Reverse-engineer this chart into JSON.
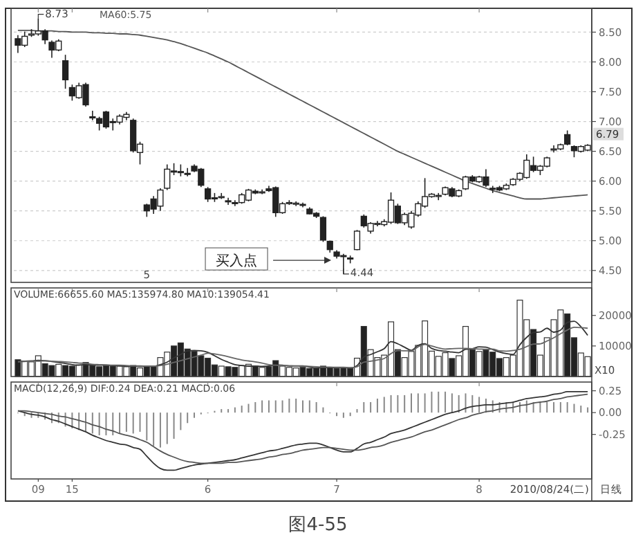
{
  "chart_data": [
    {
      "type": "candlestick",
      "color": "#222222",
      "grid": "y",
      "legend": "top left",
      "tick_labels": "y",
      "categories": [
        null,
        null,
        null,
        "09",
        null,
        null,
        null,
        null,
        "15",
        null,
        null,
        null,
        null,
        null,
        null,
        null,
        null,
        null,
        null,
        null,
        null,
        null,
        null,
        null,
        null,
        null,
        null,
        null,
        "6",
        null,
        null,
        null,
        null,
        null,
        null,
        null,
        null,
        null,
        null,
        null,
        null,
        null,
        null,
        null,
        null,
        null,
        null,
        "7",
        null,
        null,
        null,
        null,
        null,
        null,
        null,
        null,
        null,
        null,
        null,
        null,
        null,
        null,
        null,
        null,
        null,
        null,
        null,
        null,
        "8",
        null,
        null,
        null,
        null,
        null,
        null,
        null,
        null,
        null,
        null,
        null,
        null,
        null,
        null,
        null,
        null
      ],
      "ohlc": [
        [
          8.39,
          8.45,
          8.15,
          8.28
        ],
        [
          8.28,
          8.51,
          8.25,
          8.43
        ],
        [
          8.45,
          8.55,
          8.42,
          8.47
        ],
        [
          8.47,
          8.73,
          8.44,
          8.52
        ],
        [
          8.52,
          8.55,
          8.3,
          8.37
        ],
        [
          8.33,
          8.36,
          8.07,
          8.2
        ],
        [
          8.2,
          8.38,
          8.18,
          8.35
        ],
        [
          8.02,
          8.12,
          7.55,
          7.7
        ],
        [
          7.57,
          7.62,
          7.35,
          7.43
        ],
        [
          7.4,
          7.65,
          7.38,
          7.6
        ],
        [
          7.62,
          7.65,
          7.25,
          7.28
        ],
        [
          7.08,
          7.18,
          7.02,
          7.06
        ],
        [
          7.05,
          7.08,
          6.85,
          6.97
        ],
        [
          7.16,
          7.18,
          6.88,
          6.91
        ],
        [
          7.0,
          7.05,
          6.85,
          6.99
        ],
        [
          6.99,
          7.12,
          6.95,
          7.09
        ],
        [
          7.07,
          7.16,
          7.02,
          7.12
        ],
        [
          7.02,
          7.05,
          6.48,
          6.51
        ],
        [
          6.48,
          6.66,
          6.28,
          6.62
        ],
        [
          5.6,
          5.62,
          5.4,
          5.5
        ],
        [
          5.7,
          5.75,
          5.45,
          5.53
        ],
        [
          5.58,
          5.88,
          5.5,
          5.85
        ],
        [
          5.88,
          6.28,
          5.85,
          6.2
        ],
        [
          6.17,
          6.3,
          6.1,
          6.16
        ],
        [
          6.16,
          6.28,
          6.08,
          6.15
        ],
        [
          6.13,
          6.22,
          6.08,
          6.12
        ],
        [
          6.25,
          6.28,
          6.15,
          6.17
        ],
        [
          6.2,
          6.22,
          5.9,
          5.93
        ],
        [
          5.87,
          5.9,
          5.65,
          5.7
        ],
        [
          5.72,
          5.8,
          5.65,
          5.71
        ],
        [
          5.73,
          5.8,
          5.7,
          5.74
        ],
        [
          5.67,
          5.72,
          5.6,
          5.66
        ],
        [
          5.64,
          5.68,
          5.58,
          5.63
        ],
        [
          5.64,
          5.8,
          5.62,
          5.77
        ],
        [
          5.68,
          5.87,
          5.66,
          5.85
        ],
        [
          5.83,
          5.86,
          5.78,
          5.8
        ],
        [
          5.82,
          5.86,
          5.78,
          5.82
        ],
        [
          5.87,
          5.92,
          5.82,
          5.84
        ],
        [
          5.89,
          5.91,
          5.4,
          5.47
        ],
        [
          5.47,
          5.65,
          5.45,
          5.62
        ],
        [
          5.64,
          5.68,
          5.6,
          5.64
        ],
        [
          5.63,
          5.66,
          5.58,
          5.63
        ],
        [
          5.61,
          5.64,
          5.56,
          5.6
        ],
        [
          5.53,
          5.56,
          5.44,
          5.45
        ],
        [
          5.46,
          5.48,
          5.38,
          5.41
        ],
        [
          5.39,
          5.41,
          4.98,
          5.01
        ],
        [
          4.99,
          5.0,
          4.8,
          4.85
        ],
        [
          4.81,
          4.84,
          4.7,
          4.74
        ],
        [
          4.75,
          4.78,
          4.44,
          4.74
        ],
        [
          4.71,
          4.75,
          4.62,
          4.7
        ],
        [
          4.85,
          5.18,
          4.84,
          5.16
        ],
        [
          5.41,
          5.44,
          5.22,
          5.25
        ],
        [
          5.16,
          5.31,
          5.12,
          5.29
        ],
        [
          5.28,
          5.33,
          5.24,
          5.29
        ],
        [
          5.27,
          5.36,
          5.24,
          5.32
        ],
        [
          5.31,
          5.81,
          5.28,
          5.68
        ],
        [
          5.58,
          5.62,
          5.28,
          5.3
        ],
        [
          5.3,
          5.47,
          5.26,
          5.44
        ],
        [
          5.23,
          5.5,
          5.2,
          5.46
        ],
        [
          5.43,
          5.66,
          5.4,
          5.62
        ],
        [
          5.58,
          6.05,
          5.55,
          5.74
        ],
        [
          5.74,
          5.8,
          5.72,
          5.78
        ],
        [
          5.75,
          5.8,
          5.68,
          5.76
        ],
        [
          5.78,
          5.91,
          5.76,
          5.89
        ],
        [
          5.87,
          5.9,
          5.73,
          5.75
        ],
        [
          5.75,
          5.86,
          5.73,
          5.84
        ],
        [
          5.87,
          6.09,
          5.85,
          6.07
        ],
        [
          6.07,
          6.1,
          5.98,
          6.0
        ],
        [
          5.99,
          6.09,
          5.97,
          6.07
        ],
        [
          6.07,
          6.2,
          5.9,
          5.93
        ],
        [
          5.88,
          5.92,
          5.8,
          5.87
        ],
        [
          5.89,
          5.92,
          5.83,
          5.85
        ],
        [
          5.87,
          5.96,
          5.85,
          5.93
        ],
        [
          5.94,
          6.05,
          5.92,
          6.03
        ],
        [
          6.03,
          6.15,
          6.0,
          6.13
        ],
        [
          6.06,
          6.45,
          6.04,
          6.35
        ],
        [
          6.26,
          6.41,
          6.15,
          6.18
        ],
        [
          6.18,
          6.27,
          6.1,
          6.25
        ],
        [
          6.25,
          6.41,
          6.23,
          6.39
        ],
        [
          6.53,
          6.6,
          6.48,
          6.54
        ],
        [
          6.54,
          6.63,
          6.52,
          6.61
        ],
        [
          6.78,
          6.85,
          6.6,
          6.62
        ],
        [
          6.58,
          6.6,
          6.4,
          6.51
        ],
        [
          6.5,
          6.6,
          6.48,
          6.58
        ],
        [
          6.52,
          6.62,
          6.5,
          6.6
        ]
      ],
      "series": [
        {
          "type": "line",
          "name": "MA60:5.75",
          "color": "#555555",
          "values": [
            8.53,
            8.53,
            8.53,
            8.52,
            8.52,
            8.52,
            8.51,
            8.51,
            8.5,
            8.5,
            8.5,
            8.49,
            8.49,
            8.48,
            8.48,
            8.47,
            8.47,
            8.46,
            8.45,
            8.43,
            8.41,
            8.39,
            8.37,
            8.34,
            8.31,
            8.27,
            8.23,
            8.19,
            8.15,
            8.1,
            8.05,
            8.0,
            7.94,
            7.88,
            7.82,
            7.76,
            7.7,
            7.64,
            7.58,
            7.52,
            7.46,
            7.4,
            7.34,
            7.28,
            7.22,
            7.16,
            7.1,
            7.04,
            6.98,
            6.92,
            6.86,
            6.8,
            6.74,
            6.68,
            6.62,
            6.56,
            6.5,
            6.45,
            6.4,
            6.35,
            6.3,
            6.25,
            6.2,
            6.15,
            6.1,
            6.05,
            6.0,
            5.96,
            5.92,
            5.88,
            5.84,
            5.81,
            5.78,
            5.75,
            5.72,
            5.7,
            5.7,
            5.7,
            5.71,
            5.72,
            5.73,
            5.74,
            5.75,
            5.76,
            5.77
          ]
        }
      ],
      "ylim": [
        4.3,
        8.9
      ],
      "yticks": [
        {
          "value": 4.5,
          "label": "4.50"
        },
        {
          "value": 5,
          "label": "5.00"
        },
        {
          "value": 5.5,
          "label": "5.50"
        },
        {
          "value": 6,
          "label": "6.00"
        },
        {
          "value": 6.5,
          "label": "6.50"
        },
        {
          "value": 7,
          "label": "7.00"
        },
        {
          "value": 7.5,
          "label": "7.50"
        },
        {
          "value": 8,
          "label": "8.00"
        },
        {
          "value": 8.5,
          "label": "8.50"
        }
      ],
      "annotations": [
        "8.73",
        "4.44",
        "买入点",
        "5",
        "6.79"
      ]
    },
    {
      "type": "bar",
      "title": "VOLUME:66655.60 MA5:135974.80 MA10:139054.41",
      "tick_labels": "y",
      "categories": [
        null,
        null,
        null,
        "09",
        null,
        null,
        null,
        null,
        "15",
        null,
        null,
        null,
        null,
        null,
        null,
        null,
        null,
        null,
        null,
        null,
        null,
        null,
        null,
        null,
        null,
        null,
        null,
        null,
        "6",
        null,
        null,
        null,
        null,
        null,
        null,
        null,
        null,
        null,
        null,
        null,
        null,
        null,
        null,
        null,
        null,
        null,
        null,
        "7",
        null,
        null,
        null,
        null,
        null,
        null,
        null,
        null,
        null,
        null,
        null,
        null,
        null,
        null,
        null,
        null,
        null,
        null,
        null,
        null,
        "8",
        null,
        null,
        null,
        null,
        null,
        null,
        null,
        null,
        null,
        null,
        null,
        null,
        null,
        null,
        null,
        null
      ],
      "series": [
        {
          "values": [
            5500,
            5000,
            4800,
            6800,
            4200,
            3600,
            4000,
            3600,
            3400,
            3800,
            4600,
            3600,
            3200,
            3600,
            3400,
            3400,
            3200,
            3600,
            2800,
            3400,
            3200,
            6200,
            8000,
            10000,
            11000,
            9000,
            8200,
            6800,
            6000,
            3800,
            3400,
            3200,
            3000,
            3600,
            4000,
            3400,
            3000,
            3200,
            5200,
            3400,
            3000,
            2800,
            3000,
            2600,
            2600,
            3400,
            3000,
            2600,
            2800,
            2700,
            6000,
            16400,
            8800,
            6200,
            7000,
            17900,
            8800,
            6200,
            8200,
            10200,
            18200,
            8300,
            6600,
            7800,
            5900,
            6800,
            16400,
            8800,
            8200,
            8800,
            8000,
            5900,
            6200,
            7000,
            25000,
            18600,
            15400,
            7000,
            12700,
            18600,
            21800,
            20500,
            12700,
            7700,
            6500
          ],
          "colors": [
            "#222222",
            "#ffffff",
            "#ffffff",
            "#ffffff",
            "#222222",
            "#222222",
            "#ffffff",
            "#222222",
            "#222222",
            "#ffffff",
            "#222222",
            "#222222",
            "#222222",
            "#222222",
            "#222222",
            "#ffffff",
            "#ffffff",
            "#222222",
            "#ffffff",
            "#222222",
            "#222222",
            "#ffffff",
            "#ffffff",
            "#222222",
            "#222222",
            "#222222",
            "#222222",
            "#222222",
            "#222222",
            "#222222",
            "#ffffff",
            "#222222",
            "#222222",
            "#ffffff",
            "#ffffff",
            "#222222",
            "#ffffff",
            "#222222",
            "#222222",
            "#ffffff",
            "#ffffff",
            "#ffffff",
            "#222222",
            "#222222",
            "#222222",
            "#222222",
            "#222222",
            "#222222",
            "#222222",
            "#222222",
            "#ffffff",
            "#222222",
            "#ffffff",
            "#ffffff",
            "#ffffff",
            "#ffffff",
            "#222222",
            "#ffffff",
            "#ffffff",
            "#ffffff",
            "#ffffff",
            "#ffffff",
            "#ffffff",
            "#ffffff",
            "#222222",
            "#ffffff",
            "#ffffff",
            "#222222",
            "#ffffff",
            "#222222",
            "#222222",
            "#222222",
            "#ffffff",
            "#ffffff",
            "#ffffff",
            "#ffffff",
            "#222222",
            "#ffffff",
            "#ffffff",
            "#ffffff",
            "#ffffff",
            "#222222",
            "#222222",
            "#ffffff",
            "#ffffff"
          ]
        },
        {
          "type": "line",
          "color": "#333333",
          "values": [
            5000,
            5000,
            5100,
            5300,
            5200,
            4900,
            4600,
            4300,
            3900,
            3700,
            3900,
            3800,
            3700,
            3700,
            3600,
            3500,
            3400,
            3400,
            3300,
            3300,
            3300,
            3900,
            4700,
            6100,
            7200,
            8400,
            8500,
            8400,
            7900,
            6800,
            5600,
            4700,
            3900,
            3600,
            3400,
            3400,
            3300,
            3400,
            3800,
            3700,
            3500,
            3500,
            3500,
            3100,
            2800,
            2900,
            2900,
            2900,
            2900,
            2800,
            3600,
            6400,
            7200,
            8100,
            9100,
            11400,
            10700,
            9600,
            8600,
            10200,
            10700,
            9200,
            8500,
            8300,
            8000,
            7800,
            8900,
            9100,
            9700,
            9600,
            8800,
            8000,
            7500,
            7200,
            10400,
            12800,
            14400,
            14600,
            15800,
            14500,
            15200,
            17700,
            18100,
            16300,
            13500
          ]
        },
        {
          "type": "line",
          "color": "#666666",
          "values": [
            4800,
            4900,
            5000,
            5000,
            5100,
            5000,
            4900,
            4800,
            4600,
            4400,
            4300,
            4000,
            3900,
            3800,
            3700,
            3700,
            3600,
            3500,
            3500,
            3400,
            3400,
            3600,
            4000,
            4600,
            5200,
            5800,
            6400,
            7000,
            7600,
            7400,
            7000,
            6500,
            5900,
            5400,
            5100,
            4800,
            4400,
            3900,
            3700,
            3600,
            3500,
            3400,
            3400,
            3300,
            3200,
            3100,
            3100,
            3000,
            3000,
            2900,
            3200,
            4700,
            5000,
            5400,
            5900,
            7500,
            8500,
            8400,
            8400,
            9700,
            10500,
            10000,
            9400,
            9000,
            9100,
            9200,
            9200,
            9100,
            9000,
            8900,
            9000,
            8400,
            8300,
            8500,
            8900,
            9800,
            10600,
            10700,
            11600,
            12700,
            14000,
            15200,
            16100,
            16000,
            15800
          ]
        }
      ],
      "ylim": [
        0,
        29000
      ],
      "yticks": [
        10000,
        20000
      ],
      "annotations": [
        "X10"
      ]
    },
    {
      "type": "bar",
      "title": "MACD(12,26,9) DIF:0.24 DEA:0.21 MACD:0.06",
      "categories": [
        null,
        null,
        null,
        "09",
        null,
        null,
        null,
        null,
        "15",
        null,
        null,
        null,
        null,
        null,
        null,
        null,
        null,
        null,
        null,
        null,
        null,
        null,
        null,
        null,
        null,
        null,
        null,
        null,
        "6",
        null,
        null,
        null,
        null,
        null,
        null,
        null,
        null,
        null,
        null,
        null,
        null,
        null,
        null,
        null,
        null,
        null,
        null,
        "7",
        null,
        null,
        null,
        null,
        null,
        null,
        null,
        null,
        null,
        null,
        null,
        null,
        null,
        null,
        null,
        null,
        null,
        null,
        null,
        null,
        "8",
        null,
        null,
        null,
        null,
        null,
        null,
        null,
        null,
        null,
        null,
        null,
        null,
        null,
        null,
        null,
        null
      ],
      "series": [
        {
          "color": "#888888",
          "values": [
            0,
            -0.04,
            -0.06,
            -0.06,
            -0.08,
            -0.12,
            -0.12,
            -0.16,
            -0.18,
            -0.2,
            -0.22,
            -0.24,
            -0.26,
            -0.26,
            -0.26,
            -0.24,
            -0.22,
            -0.24,
            -0.22,
            -0.32,
            -0.38,
            -0.4,
            -0.36,
            -0.3,
            -0.2,
            -0.12,
            -0.06,
            -0.02,
            0,
            0.02,
            0.04,
            0.04,
            0.06,
            0.08,
            0.1,
            0.12,
            0.14,
            0.14,
            0.14,
            0.14,
            0.16,
            0.16,
            0.14,
            0.14,
            0.12,
            0.06,
            0,
            -0.04,
            -0.06,
            -0.04,
            0.04,
            0.12,
            0.12,
            0.16,
            0.18,
            0.2,
            0.2,
            0.2,
            0.22,
            0.22,
            0.22,
            0.24,
            0.24,
            0.24,
            0.22,
            0.2,
            0.22,
            0.2,
            0.18,
            0.16,
            0.14,
            0.12,
            0.12,
            0.12,
            0.12,
            0.14,
            0.12,
            0.12,
            0.12,
            0.12,
            0.12,
            0.12,
            0.1,
            0.08,
            0.06
          ]
        },
        {
          "type": "line",
          "color": "#333333",
          "values": [
            0.02,
            0,
            -0.02,
            -0.03,
            -0.05,
            -0.08,
            -0.1,
            -0.13,
            -0.16,
            -0.19,
            -0.22,
            -0.26,
            -0.29,
            -0.32,
            -0.34,
            -0.36,
            -0.37,
            -0.4,
            -0.42,
            -0.5,
            -0.58,
            -0.64,
            -0.66,
            -0.66,
            -0.64,
            -0.62,
            -0.6,
            -0.59,
            -0.58,
            -0.57,
            -0.56,
            -0.55,
            -0.54,
            -0.52,
            -0.5,
            -0.48,
            -0.46,
            -0.44,
            -0.43,
            -0.41,
            -0.39,
            -0.37,
            -0.36,
            -0.35,
            -0.35,
            -0.37,
            -0.4,
            -0.43,
            -0.45,
            -0.45,
            -0.41,
            -0.36,
            -0.34,
            -0.31,
            -0.28,
            -0.24,
            -0.22,
            -0.2,
            -0.17,
            -0.14,
            -0.11,
            -0.08,
            -0.05,
            -0.02,
            0,
            0.02,
            0.05,
            0.07,
            0.08,
            0.09,
            0.09,
            0.1,
            0.11,
            0.12,
            0.14,
            0.16,
            0.17,
            0.18,
            0.19,
            0.21,
            0.22,
            0.24,
            0.24,
            0.24,
            0.24
          ]
        },
        {
          "type": "line",
          "color": "#555555",
          "values": [
            0.02,
            0.02,
            0.01,
            0,
            -0.01,
            -0.02,
            -0.04,
            -0.05,
            -0.07,
            -0.09,
            -0.11,
            -0.14,
            -0.16,
            -0.19,
            -0.21,
            -0.24,
            -0.26,
            -0.28,
            -0.31,
            -0.34,
            -0.39,
            -0.44,
            -0.48,
            -0.51,
            -0.54,
            -0.56,
            -0.57,
            -0.58,
            -0.58,
            -0.58,
            -0.58,
            -0.57,
            -0.57,
            -0.56,
            -0.55,
            -0.54,
            -0.53,
            -0.51,
            -0.5,
            -0.48,
            -0.47,
            -0.45,
            -0.43,
            -0.42,
            -0.41,
            -0.4,
            -0.4,
            -0.41,
            -0.42,
            -0.43,
            -0.43,
            -0.42,
            -0.4,
            -0.39,
            -0.37,
            -0.34,
            -0.32,
            -0.3,
            -0.28,
            -0.25,
            -0.22,
            -0.2,
            -0.17,
            -0.14,
            -0.11,
            -0.08,
            -0.06,
            -0.03,
            -0.01,
            0.01,
            0.02,
            0.04,
            0.05,
            0.06,
            0.08,
            0.09,
            0.11,
            0.12,
            0.13,
            0.15,
            0.16,
            0.18,
            0.19,
            0.2,
            0.21
          ]
        }
      ],
      "ylim": [
        -0.76,
        0.35
      ],
      "yticks": [
        {
          "value": 0.25,
          "label": "0.25"
        },
        {
          "value": 0,
          "label": "0.00"
        },
        {
          "value": -0.25,
          "label": "-0.25"
        }
      ],
      "annotations": [
        "2010/08/24(二)",
        "日线",
        "图4-55"
      ]
    }
  ]
}
